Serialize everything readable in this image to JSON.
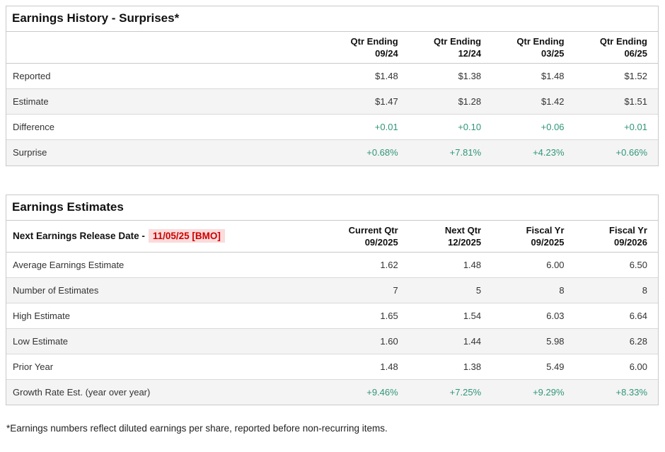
{
  "colors": {
    "positive_value_green": "#2f9678",
    "release_date_red": "#cc0000",
    "release_date_bg_pink": "#fbdbdb",
    "row_stripe_gray": "#f4f4f4",
    "border_gray": "#c9c9c9"
  },
  "history": {
    "title": "Earnings History - Surprises*",
    "columns": [
      {
        "line1": "Qtr Ending",
        "line2": "09/24"
      },
      {
        "line1": "Qtr Ending",
        "line2": "12/24"
      },
      {
        "line1": "Qtr Ending",
        "line2": "03/25"
      },
      {
        "line1": "Qtr Ending",
        "line2": "06/25"
      }
    ],
    "rows": [
      {
        "label": "Reported",
        "values": [
          "$1.48",
          "$1.38",
          "$1.48",
          "$1.52"
        ]
      },
      {
        "label": "Estimate",
        "values": [
          "$1.47",
          "$1.28",
          "$1.42",
          "$1.51"
        ]
      },
      {
        "label": "Difference",
        "values": [
          "+0.01",
          "+0.10",
          "+0.06",
          "+0.01"
        ]
      },
      {
        "label": "Surprise",
        "values": [
          "+0.68%",
          "+7.81%",
          "+4.23%",
          "+0.66%"
        ]
      }
    ]
  },
  "estimates": {
    "title": "Earnings Estimates",
    "release_label": "Next Earnings Release Date -",
    "release_date": "11/05/25 [BMO]",
    "columns": [
      {
        "line1": "Current Qtr",
        "line2": "09/2025"
      },
      {
        "line1": "Next Qtr",
        "line2": "12/2025"
      },
      {
        "line1": "Fiscal Yr",
        "line2": "09/2025"
      },
      {
        "line1": "Fiscal Yr",
        "line2": "09/2026"
      }
    ],
    "rows": [
      {
        "label": "Average Earnings Estimate",
        "values": [
          "1.62",
          "1.48",
          "6.00",
          "6.50"
        ]
      },
      {
        "label": "Number of Estimates",
        "values": [
          "7",
          "5",
          "8",
          "8"
        ]
      },
      {
        "label": "High Estimate",
        "values": [
          "1.65",
          "1.54",
          "6.03",
          "6.64"
        ]
      },
      {
        "label": "Low Estimate",
        "values": [
          "1.60",
          "1.44",
          "5.98",
          "6.28"
        ]
      },
      {
        "label": "Prior Year",
        "values": [
          "1.48",
          "1.38",
          "5.49",
          "6.00"
        ]
      },
      {
        "label": "Growth Rate Est. (year over year)",
        "values": [
          "+9.46%",
          "+7.25%",
          "+9.29%",
          "+8.33%"
        ]
      }
    ]
  },
  "footnote": "*Earnings numbers reflect diluted earnings per share, reported before non-recurring items."
}
